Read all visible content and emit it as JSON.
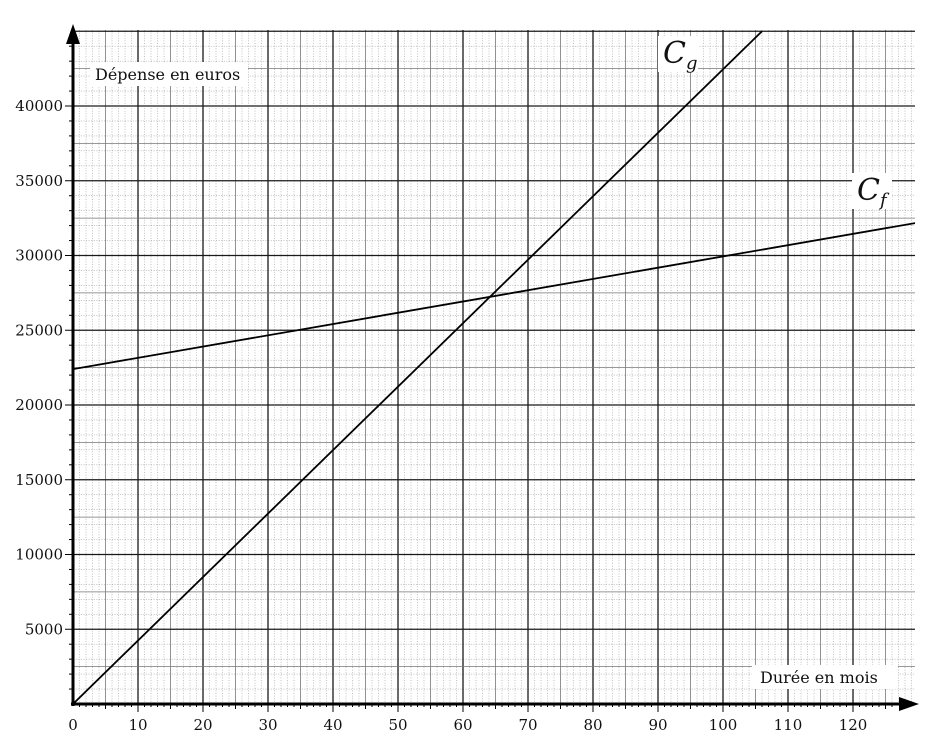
{
  "chart_data": {
    "type": "line",
    "title": "",
    "xlabel": "Durée en mois",
    "ylabel": "Dépense en euros",
    "xlim": [
      0,
      130
    ],
    "ylim": [
      0,
      45000
    ],
    "x_ticks": [
      0,
      10,
      20,
      30,
      40,
      50,
      60,
      70,
      80,
      90,
      100,
      110,
      120
    ],
    "y_ticks": [
      5000,
      10000,
      15000,
      20000,
      25000,
      30000,
      35000,
      40000
    ],
    "x_tick_labels": [
      "0",
      "10",
      "20",
      "30",
      "40",
      "50",
      "60",
      "70",
      "80",
      "90",
      "100",
      "110",
      "120"
    ],
    "y_tick_labels": [
      "5000",
      "10000",
      "15000",
      "20000",
      "25000",
      "30000",
      "35000",
      "40000"
    ],
    "grid": true,
    "series": [
      {
        "name": "C_g",
        "label_main": "C",
        "label_sub": "g",
        "color": "#000000",
        "x": [
          0,
          106
        ],
        "y": [
          0,
          45000
        ]
      },
      {
        "name": "C_f",
        "label_main": "C",
        "label_sub": "f",
        "color": "#000000",
        "x": [
          0,
          130
        ],
        "y": [
          22400,
          32200
        ]
      }
    ]
  }
}
